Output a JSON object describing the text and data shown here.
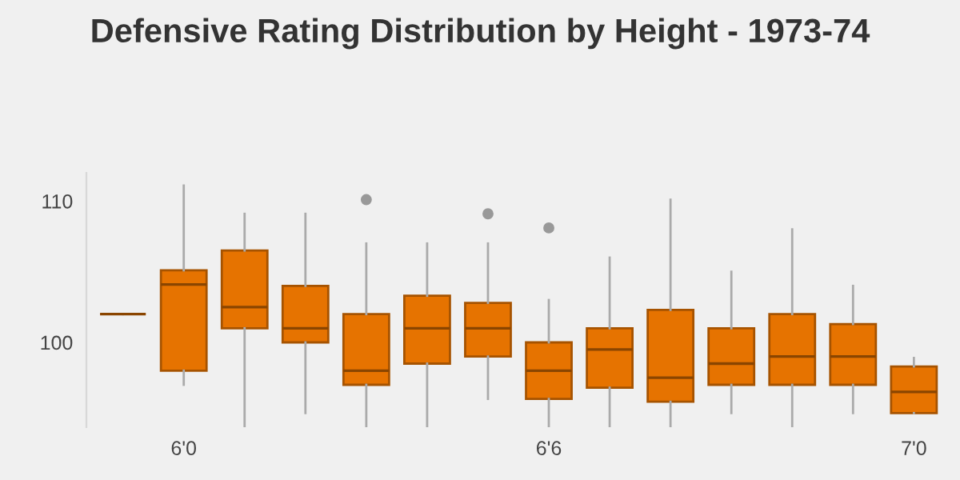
{
  "chart_data": {
    "type": "box",
    "title": "Defensive Rating Distribution by Height - 1973-74",
    "categories": [
      null,
      "6'0",
      null,
      null,
      null,
      null,
      null,
      "6'6",
      null,
      null,
      null,
      null,
      null,
      "7'0"
    ],
    "color": "#e67300",
    "boxes": [
      {
        "low": 102,
        "q1": 102,
        "median": 102,
        "q3": 102,
        "high": 102
      },
      {
        "low": 97,
        "q1": 98,
        "median": 104.1,
        "q3": 105.1,
        "high": 111.1
      },
      {
        "low": 94,
        "q1": 101,
        "median": 102.5,
        "q3": 106.5,
        "high": 109.1
      },
      {
        "low": 95,
        "q1": 100,
        "median": 101,
        "q3": 104,
        "high": 109.1
      },
      {
        "low": 94,
        "q1": 97,
        "median": 98,
        "q3": 102,
        "high": 107,
        "outliers": [
          110.1
        ]
      },
      {
        "low": 94,
        "q1": 98.5,
        "median": 101,
        "q3": 103.3,
        "high": 107
      },
      {
        "low": 96,
        "q1": 99,
        "median": 101,
        "q3": 102.8,
        "high": 107,
        "outliers": [
          109.1
        ]
      },
      {
        "low": 94,
        "q1": 96,
        "median": 98,
        "q3": 100,
        "high": 103,
        "outliers": [
          108.1
        ]
      },
      {
        "low": 94,
        "q1": 96.8,
        "median": 99.5,
        "q3": 101,
        "high": 106
      },
      {
        "low": 94,
        "q1": 95.8,
        "median": 97.5,
        "q3": 102.3,
        "high": 110.1
      },
      {
        "low": 95,
        "q1": 97,
        "median": 98.5,
        "q3": 101,
        "high": 105
      },
      {
        "low": 94,
        "q1": 97,
        "median": 99,
        "q3": 102,
        "high": 108
      },
      {
        "low": 95,
        "q1": 97,
        "median": 99,
        "q3": 101.3,
        "high": 104
      },
      {
        "low": 95,
        "q1": 95,
        "median": 96.5,
        "q3": 98.3,
        "high": 98.9
      }
    ],
    "ylim": [
      94,
      112
    ],
    "yticks": [
      100,
      110
    ],
    "grid": false,
    "legend": false
  }
}
